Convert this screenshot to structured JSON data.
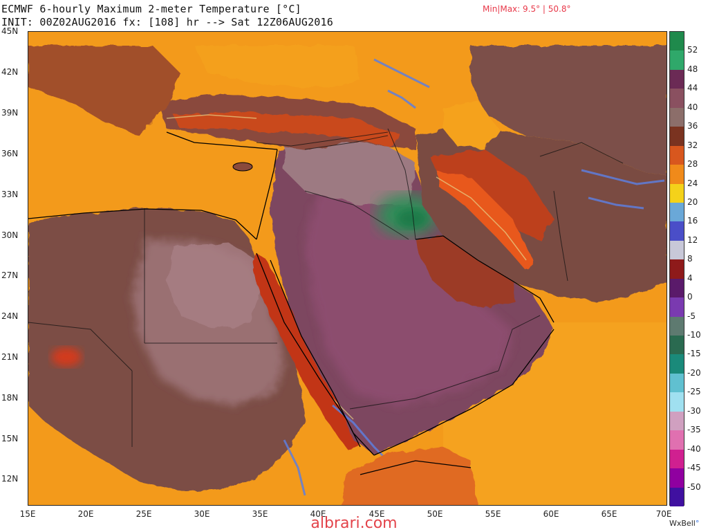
{
  "header": {
    "title_line1": "ECMWF 6-hourly Maximum 2-meter Temperature [°C]",
    "title_line2": "INIT: 00Z02AUG2016 fx: [108] hr --> Sat 12Z06AUG2016",
    "minmax": "Min|Max: 9.5° | 50.8°"
  },
  "map": {
    "lat_labels": [
      "45N",
      "42N",
      "39N",
      "36N",
      "33N",
      "30N",
      "27N",
      "24N",
      "21N",
      "18N",
      "15N",
      "12N"
    ],
    "lon_labels": [
      "15E",
      "20E",
      "25E",
      "30E",
      "35E",
      "40E",
      "45E",
      "50E",
      "55E",
      "60E",
      "65E",
      "70E"
    ],
    "colors": {
      "sea_orange": "#f6a21c",
      "hot_red": "#c8381c",
      "brown": "#7a4a40",
      "mauve": "#9c6a78",
      "plum": "#7a3c5a",
      "green_hot": "#2a8a50",
      "cool_blue": "#5a7ad8"
    }
  },
  "colorbar": {
    "labels": [
      "52",
      "48",
      "44",
      "40",
      "36",
      "32",
      "28",
      "24",
      "20",
      "16",
      "12",
      "8",
      "4",
      "0",
      "-5",
      "-10",
      "-15",
      "-20",
      "-25",
      "-30",
      "-35",
      "-40",
      "-45",
      "-50"
    ],
    "colors": [
      "#1f8a4c",
      "#2fa86a",
      "#6b2a55",
      "#8a5060",
      "#8c6e6a",
      "#7a3320",
      "#d8571e",
      "#f08a1a",
      "#f4d21a",
      "#6aa8d8",
      "#4a4ec8",
      "#c8c8d8",
      "#8e1a1a",
      "#5a1a6a",
      "#7a3ab0",
      "#5e7a70",
      "#2a6a50",
      "#1a8a7a",
      "#60c0d0",
      "#a0e0f0",
      "#d0a0c0",
      "#e070b0",
      "#d02090",
      "#9000a0",
      "#4010a0"
    ]
  },
  "footer": {
    "brand": "WxBell",
    "brand_dot": "°",
    "watermark": "albrari.com"
  }
}
